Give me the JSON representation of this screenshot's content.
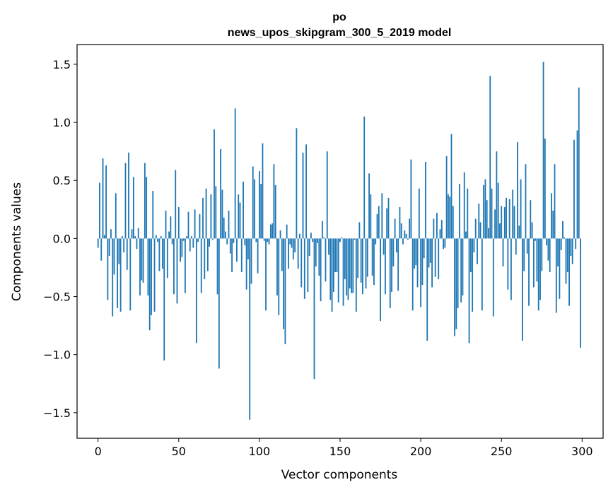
{
  "chart_data": {
    "type": "bar",
    "title": "po",
    "subtitle": "news_upos_skipgram_300_5_2019 model",
    "xlabel": "Vector components",
    "ylabel": "Components values",
    "xlim": [
      -13,
      313
    ],
    "ylim": [
      -1.72,
      1.67
    ],
    "xticks": [
      0,
      50,
      100,
      150,
      200,
      250,
      300
    ],
    "xtick_labels": [
      "0",
      "50",
      "100",
      "150",
      "200",
      "250",
      "300"
    ],
    "yticks": [
      -1.5,
      -1.0,
      -0.5,
      0.0,
      0.5,
      1.0,
      1.5
    ],
    "ytick_labels": [
      "−1.5",
      "−1.0",
      "−0.5",
      "0.0",
      "0.5",
      "1.0",
      "1.5"
    ],
    "grid": false,
    "bar_color": "#1f77b4",
    "x": [
      0,
      1,
      2,
      3,
      4,
      5,
      6,
      7,
      8,
      9,
      10,
      11,
      12,
      13,
      14,
      15,
      16,
      17,
      18,
      19,
      20,
      21,
      22,
      23,
      24,
      25,
      26,
      27,
      28,
      29,
      30,
      31,
      32,
      33,
      34,
      35,
      36,
      37,
      38,
      39,
      40,
      41,
      42,
      43,
      44,
      45,
      46,
      47,
      48,
      49,
      50,
      51,
      52,
      53,
      54,
      55,
      56,
      57,
      58,
      59,
      60,
      61,
      62,
      63,
      64,
      65,
      66,
      67,
      68,
      69,
      70,
      71,
      72,
      73,
      74,
      75,
      76,
      77,
      78,
      79,
      80,
      81,
      82,
      83,
      84,
      85,
      86,
      87,
      88,
      89,
      90,
      91,
      92,
      93,
      94,
      95,
      96,
      97,
      98,
      99,
      100,
      101,
      102,
      103,
      104,
      105,
      106,
      107,
      108,
      109,
      110,
      111,
      112,
      113,
      114,
      115,
      116,
      117,
      118,
      119,
      120,
      121,
      122,
      123,
      124,
      125,
      126,
      127,
      128,
      129,
      130,
      131,
      132,
      133,
      134,
      135,
      136,
      137,
      138,
      139,
      140,
      141,
      142,
      143,
      144,
      145,
      146,
      147,
      148,
      149,
      150,
      151,
      152,
      153,
      154,
      155,
      156,
      157,
      158,
      159,
      160,
      161,
      162,
      163,
      164,
      165,
      166,
      167,
      168,
      169,
      170,
      171,
      172,
      173,
      174,
      175,
      176,
      177,
      178,
      179,
      180,
      181,
      182,
      183,
      184,
      185,
      186,
      187,
      188,
      189,
      190,
      191,
      192,
      193,
      194,
      195,
      196,
      197,
      198,
      199,
      200,
      201,
      202,
      203,
      204,
      205,
      206,
      207,
      208,
      209,
      210,
      211,
      212,
      213,
      214,
      215,
      216,
      217,
      218,
      219,
      220,
      221,
      222,
      223,
      224,
      225,
      226,
      227,
      228,
      229,
      230,
      231,
      232,
      233,
      234,
      235,
      236,
      237,
      238,
      239,
      240,
      241,
      242,
      243,
      244,
      245,
      246,
      247,
      248,
      249,
      250,
      251,
      252,
      253,
      254,
      255,
      256,
      257,
      258,
      259,
      260,
      261,
      262,
      263,
      264,
      265,
      266,
      267,
      268,
      269,
      270,
      271,
      272,
      273,
      274,
      275,
      276,
      277,
      278,
      279,
      280,
      281,
      282,
      283,
      284,
      285,
      286,
      287,
      288,
      289,
      290,
      291,
      292,
      293,
      294,
      295,
      296,
      297,
      298,
      299
    ],
    "values": [
      -0.08,
      0.48,
      -0.19,
      0.69,
      0.03,
      0.63,
      -0.53,
      -0.15,
      0.08,
      -0.67,
      -0.31,
      0.39,
      -0.6,
      -0.22,
      -0.63,
      0.02,
      -0.12,
      0.65,
      -0.27,
      0.74,
      -0.62,
      0.08,
      0.53,
      0.02,
      -0.09,
      0.09,
      -0.49,
      -0.36,
      -0.38,
      0.65,
      0.53,
      -0.49,
      -0.79,
      -0.66,
      0.41,
      -0.63,
      0.03,
      -0.03,
      -0.28,
      0.02,
      -0.26,
      -1.05,
      0.24,
      -0.34,
      0.06,
      0.19,
      -0.05,
      -0.48,
      0.59,
      -0.56,
      0.27,
      -0.2,
      -0.16,
      -0.02,
      -0.47,
      0.02,
      0.23,
      -0.11,
      0.02,
      -0.08,
      0.25,
      -0.9,
      -0.03,
      0.21,
      -0.47,
      0.35,
      -0.35,
      0.43,
      -0.28,
      -0.07,
      0.38,
      -0.01,
      0.94,
      0.45,
      -0.48,
      -1.12,
      0.77,
      0.42,
      0.18,
      0.06,
      -0.05,
      0.24,
      -0.13,
      -0.29,
      -0.04,
      1.12,
      -0.2,
      0.38,
      0.31,
      -0.29,
      0.49,
      -0.06,
      -0.44,
      -0.18,
      -1.56,
      -0.39,
      0.62,
      0.51,
      -0.03,
      -0.3,
      0.58,
      0.47,
      0.82,
      -0.02,
      -0.62,
      -0.03,
      -0.05,
      0.12,
      0.13,
      0.64,
      0.46,
      -0.49,
      -0.66,
      0.07,
      -0.28,
      -0.78,
      -0.91,
      0.12,
      -0.26,
      -0.05,
      -0.08,
      -0.18,
      -0.12,
      0.95,
      -0.26,
      0.04,
      -0.42,
      0.74,
      -0.52,
      0.81,
      -0.46,
      -0.15,
      0.05,
      -0.03,
      -1.21,
      -0.24,
      -0.04,
      -0.32,
      -0.54,
      0.15,
      0.01,
      -0.37,
      0.75,
      -0.14,
      -0.53,
      -0.63,
      -0.46,
      -0.29,
      -0.29,
      -0.55,
      -0.03,
      0.01,
      -0.58,
      -0.35,
      -0.49,
      -0.53,
      -0.43,
      -0.47,
      -0.47,
      -0.01,
      -0.63,
      -0.34,
      0.14,
      -0.38,
      -0.48,
      1.05,
      -0.43,
      -0.33,
      0.56,
      0.38,
      -0.32,
      -0.4,
      -0.05,
      0.21,
      0.28,
      -0.71,
      0.39,
      -0.14,
      -0.48,
      0.26,
      0.35,
      -0.6,
      -0.46,
      -0.24,
      0.17,
      -0.12,
      -0.45,
      0.27,
      0.13,
      -0.05,
      0.07,
      0.04,
      -0.01,
      0.17,
      0.68,
      -0.62,
      -0.26,
      -0.23,
      -0.42,
      0.43,
      -0.59,
      -0.4,
      -0.17,
      0.66,
      -0.88,
      -0.25,
      -0.21,
      -0.42,
      0.17,
      -0.33,
      0.22,
      -0.35,
      0.08,
      0.16,
      -0.09,
      -0.08,
      0.71,
      0.38,
      0.36,
      0.9,
      0.28,
      -0.84,
      -0.78,
      -0.6,
      0.47,
      -0.55,
      -0.49,
      0.57,
      0.06,
      0.43,
      -0.9,
      -0.29,
      -0.63,
      -0.12,
      0.17,
      -0.22,
      0.3,
      0.14,
      -0.62,
      0.46,
      0.51,
      0.33,
      0.09,
      1.4,
      0.43,
      -0.67,
      0.25,
      0.75,
      0.48,
      0.13,
      0.28,
      -0.24,
      0.27,
      0.35,
      -0.44,
      0.34,
      -0.53,
      0.42,
      0.28,
      -0.14,
      0.83,
      0.11,
      0.51,
      -0.88,
      -0.28,
      0.64,
      -0.13,
      -0.58,
      0.33,
      0.14,
      -0.42,
      -0.02,
      -0.37,
      -0.62,
      -0.53,
      -0.28,
      1.52,
      0.86,
      -0.06,
      -0.19,
      -0.29,
      0.39,
      0.24,
      0.64,
      -0.64,
      -0.24,
      -0.52,
      -0.1,
      0.15,
      0.01,
      -0.39,
      -0.29,
      -0.58,
      -0.15,
      -0.22,
      0.85,
      -0.09,
      0.93,
      1.3,
      -0.94
    ]
  }
}
